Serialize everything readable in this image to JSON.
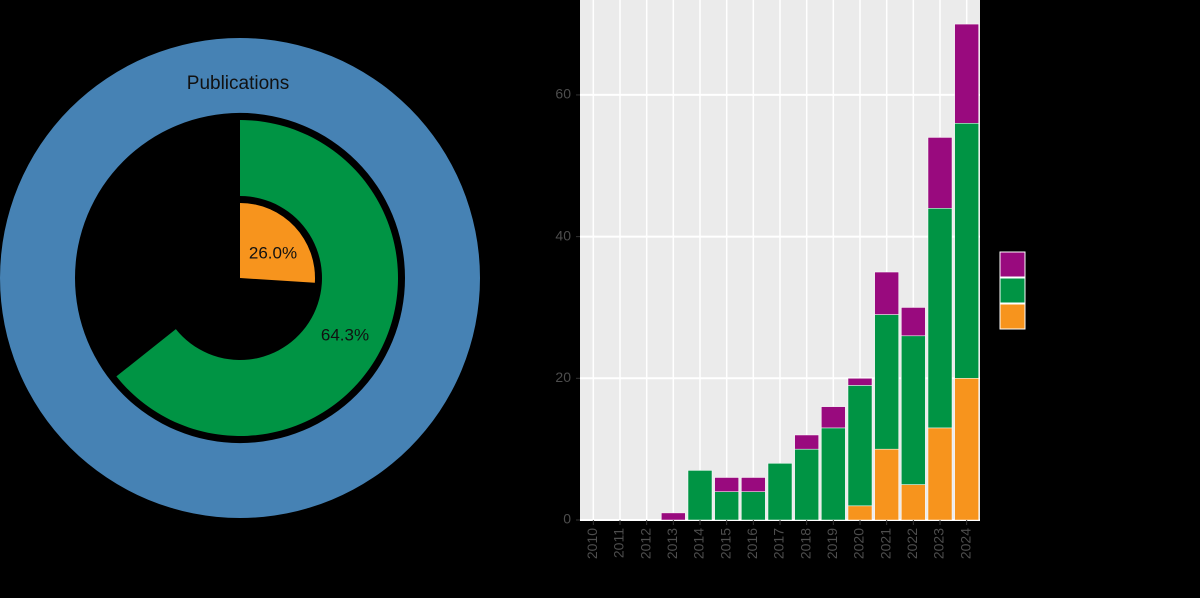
{
  "chart_data": [
    {
      "type": "radial",
      "categories": [
        "Publications",
        null,
        null
      ],
      "values": [
        100,
        64.3,
        26.0
      ],
      "value_labels": [
        null,
        "64.3%",
        "26.0%"
      ],
      "colors": [
        "#4682b4",
        "#009444",
        "#f7941d"
      ],
      "ylim": [
        0,
        100
      ]
    },
    {
      "type": "stacked-bar",
      "categories": [
        "2010",
        "2011",
        "2012",
        "2013",
        "2014",
        "2015",
        "2016",
        "2017",
        "2018",
        "2019",
        "2020",
        "2021",
        "2022",
        "2023",
        "2024"
      ],
      "series": [
        {
          "color": "#f7941d",
          "values": [
            0,
            0,
            0,
            0,
            0,
            0,
            0,
            0,
            0,
            0,
            2,
            10,
            5,
            13,
            20
          ]
        },
        {
          "color": "#009444",
          "values": [
            0,
            0,
            0,
            0,
            7,
            4,
            4,
            8,
            10,
            13,
            17,
            19,
            21,
            31,
            36
          ]
        },
        {
          "color": "#990a7e",
          "values": [
            0,
            0,
            0,
            1,
            0,
            2,
            2,
            0,
            2,
            3,
            1,
            6,
            4,
            10,
            14
          ]
        }
      ],
      "ylim": [
        0,
        73.4
      ],
      "yticks": [
        0,
        20,
        40,
        60
      ],
      "grid": true
    }
  ]
}
